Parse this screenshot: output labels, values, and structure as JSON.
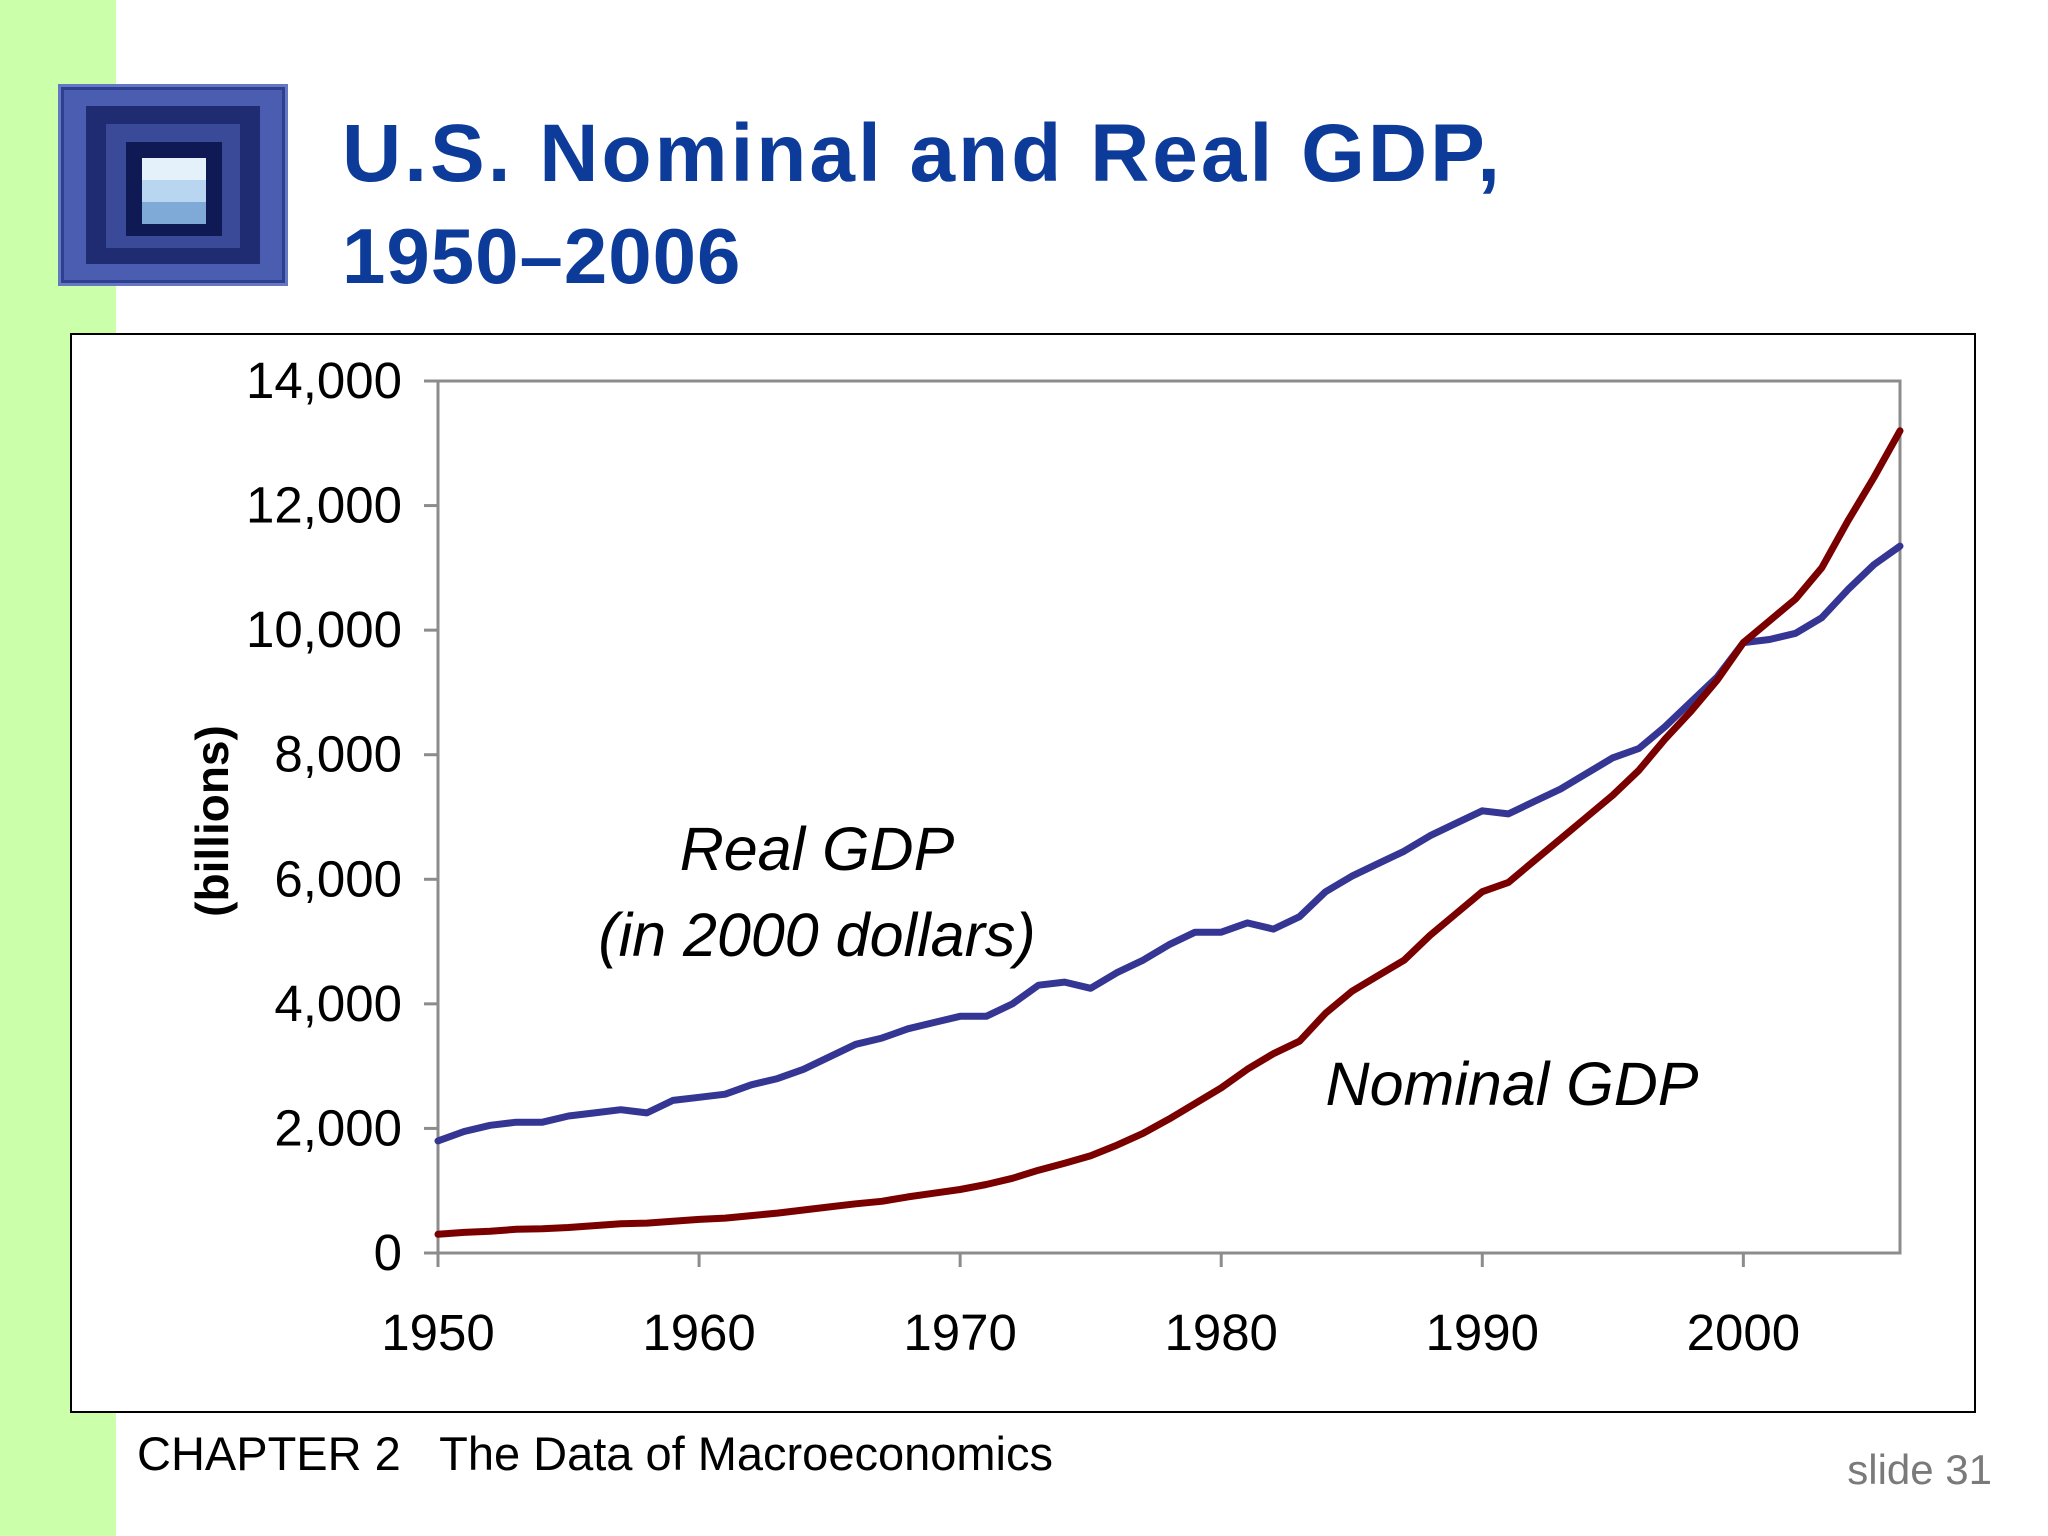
{
  "slide": {
    "title_line1": "U.S. Nominal and Real GDP,",
    "title_line2": "1950–2006",
    "footer": "CHAPTER 2   The Data of Macroeconomics",
    "slide_number": "slide 31",
    "colors": {
      "accent_bar": "#ccffa9",
      "title": "#0d3b99"
    }
  },
  "chart_data": {
    "type": "line",
    "title": "",
    "xlabel": "",
    "ylabel": "(billions)",
    "xlim": [
      1950,
      2006
    ],
    "ylim": [
      0,
      14000
    ],
    "x_ticks": [
      "1950",
      "1960",
      "1970",
      "1980",
      "1990",
      "2000"
    ],
    "y_ticks": [
      "0",
      "2,000",
      "4,000",
      "6,000",
      "8,000",
      "10,000",
      "12,000",
      "14,000"
    ],
    "grid": false,
    "annotations": [
      {
        "text": "Real GDP",
        "series": "Real GDP"
      },
      {
        "text": "(in 2000 dollars)",
        "series": "Real GDP"
      },
      {
        "text": "Nominal GDP",
        "series": "Nominal GDP"
      }
    ],
    "x": [
      1950,
      1951,
      1952,
      1953,
      1954,
      1955,
      1956,
      1957,
      1958,
      1959,
      1960,
      1961,
      1962,
      1963,
      1964,
      1965,
      1966,
      1967,
      1968,
      1969,
      1970,
      1971,
      1972,
      1973,
      1974,
      1975,
      1976,
      1977,
      1978,
      1979,
      1980,
      1981,
      1982,
      1983,
      1984,
      1985,
      1986,
      1987,
      1988,
      1989,
      1990,
      1991,
      1992,
      1993,
      1994,
      1995,
      1996,
      1997,
      1998,
      1999,
      2000,
      2001,
      2002,
      2003,
      2004,
      2005,
      2006
    ],
    "series": [
      {
        "name": "Real GDP",
        "color": "#353593",
        "values": [
          1800,
          1950,
          2050,
          2100,
          2100,
          2200,
          2250,
          2300,
          2250,
          2450,
          2500,
          2550,
          2700,
          2800,
          2950,
          3150,
          3350,
          3450,
          3600,
          3700,
          3800,
          3800,
          4000,
          4300,
          4350,
          4250,
          4500,
          4700,
          4950,
          5150,
          5150,
          5300,
          5200,
          5400,
          5800,
          6050,
          6250,
          6450,
          6700,
          6900,
          7100,
          7050,
          7250,
          7450,
          7700,
          7950,
          8100,
          8450,
          8850,
          9250,
          9800,
          9850,
          9950,
          10200,
          10650,
          11050,
          11350
        ]
      },
      {
        "name": "Nominal GDP",
        "color": "#7a0000",
        "values": [
          300,
          330,
          350,
          380,
          390,
          410,
          440,
          470,
          480,
          510,
          540,
          560,
          600,
          640,
          690,
          740,
          790,
          830,
          900,
          960,
          1020,
          1100,
          1200,
          1330,
          1440,
          1560,
          1730,
          1920,
          2150,
          2400,
          2650,
          2950,
          3200,
          3400,
          3850,
          4200,
          4450,
          4700,
          5100,
          5450,
          5800,
          5950,
          6300,
          6650,
          7000,
          7350,
          7750,
          8250,
          8700,
          9200,
          9800,
          10150,
          10500,
          11000,
          11750,
          12450,
          13200
        ]
      }
    ]
  }
}
